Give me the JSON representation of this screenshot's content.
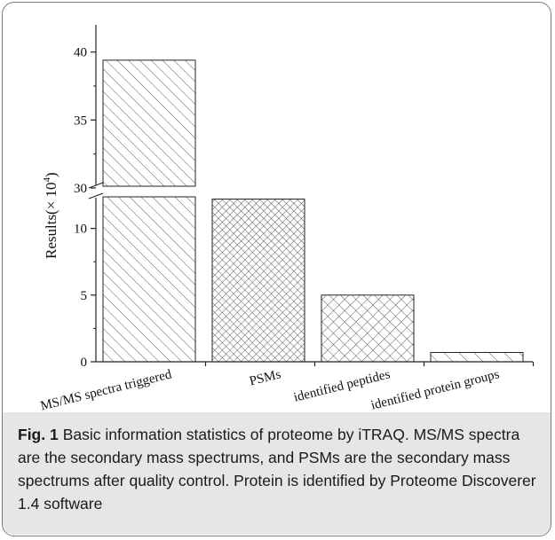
{
  "chart_data": {
    "type": "bar",
    "categories": [
      "MS/MS spectra triggered",
      "PSMs",
      "identified peptides",
      "identified protein groups"
    ],
    "values": [
      39.4,
      12.2,
      5.0,
      0.7
    ],
    "xlabel": "",
    "ylabel": "Results(× 10",
    "ylabel_superscript": "4",
    "ylabel_suffix": ")",
    "ylim": [
      0,
      42
    ],
    "axis_break": [
      12.5,
      30
    ],
    "yticks_lower": [
      0,
      5,
      10
    ],
    "yticks_upper": [
      30,
      35,
      40
    ],
    "hatch_patterns": [
      "diagonal-backslash",
      "cross",
      "cross-wide",
      "diagonal-backslash-wide"
    ],
    "bar_fill": "#ffffff",
    "bar_stroke": "#222222",
    "grid": false,
    "legend": "none"
  },
  "caption": {
    "label": "Fig. 1",
    "text": "Basic information statistics of proteome by iTRAQ. MS/MS spectra are the secondary mass spectrums, and PSMs are the secondary mass spectrums after quality control. Protein is identified by Proteome Discoverer 1.4 software"
  }
}
